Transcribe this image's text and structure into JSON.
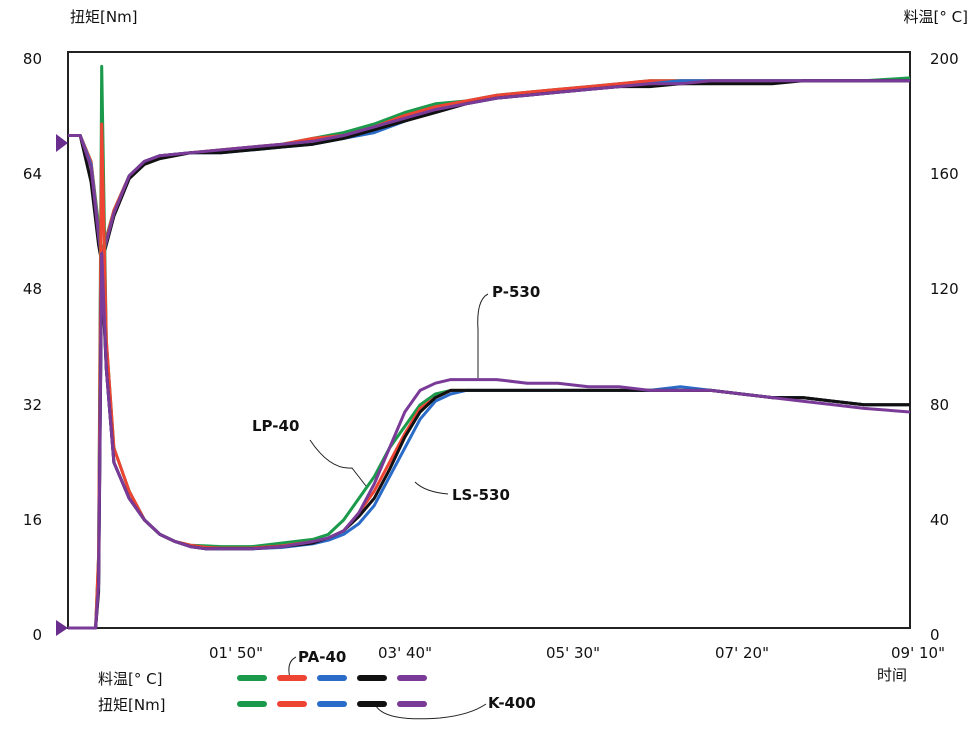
{
  "chart_data": {
    "type": "line",
    "left_axis_title": "扭矩[Nm]",
    "right_axis_title": "料温[° C]",
    "x_axis_title": "时间",
    "left_ylim": [
      0,
      80
    ],
    "right_ylim": [
      0,
      200
    ],
    "left_ticks": [
      "0",
      "16",
      "32",
      "48",
      "64",
      "80"
    ],
    "right_ticks": [
      "0",
      "40",
      "80",
      "120",
      "160",
      "200"
    ],
    "x_range_seconds": [
      0,
      550
    ],
    "x_ticks": [
      {
        "t": 110,
        "label": "01' 50\""
      },
      {
        "t": 220,
        "label": "03' 40\""
      },
      {
        "t": 330,
        "label": "05' 30\""
      },
      {
        "t": 440,
        "label": "07' 20\""
      },
      {
        "t": 550,
        "label": "09' 10\""
      }
    ],
    "grid": false,
    "series_colors": {
      "LP-40": "#1a9a4a",
      "PA-40": "#ee4433",
      "LS-530": "#2a6cc8",
      "K-400": "#111111",
      "P-530": "#7a3a98"
    },
    "annotations": [
      "P-530",
      "LP-40",
      "LS-530",
      "PA-40",
      "K-400"
    ],
    "legend": {
      "row_temp": "料温[° C]",
      "row_torque": "扭矩[Nm]",
      "order": [
        "LP-40",
        "PA-40",
        "LS-530",
        "K-400",
        "P-530"
      ]
    },
    "temperature_series": [
      {
        "name": "LP-40",
        "x": [
          0,
          8,
          15,
          20,
          22,
          30,
          40,
          50,
          60,
          80,
          100,
          120,
          140,
          160,
          180,
          200,
          220,
          240,
          260,
          280,
          300,
          320,
          340,
          360,
          380,
          400,
          420,
          440,
          460,
          480,
          500,
          520,
          550
        ],
        "y": [
          171,
          171,
          162,
          140,
          130,
          145,
          157,
          162,
          164,
          165,
          166,
          167,
          168,
          170,
          172,
          175,
          179,
          182,
          183,
          185,
          186,
          187,
          188,
          189,
          190,
          190,
          190,
          190,
          190,
          190,
          190,
          190,
          191
        ]
      },
      {
        "name": "PA-40",
        "x": [
          0,
          8,
          15,
          20,
          22,
          30,
          40,
          50,
          60,
          80,
          100,
          120,
          140,
          160,
          180,
          200,
          220,
          240,
          260,
          280,
          300,
          320,
          340,
          360,
          380,
          400,
          420,
          440,
          460,
          480,
          500,
          520,
          550
        ],
        "y": [
          171,
          171,
          162,
          138,
          129,
          145,
          157,
          162,
          164,
          165,
          166,
          167,
          168,
          170,
          171,
          174,
          178,
          181,
          183,
          185,
          186,
          187,
          188,
          189,
          190,
          190,
          190,
          190,
          190,
          190,
          190,
          190,
          190
        ]
      },
      {
        "name": "LS-530",
        "x": [
          0,
          8,
          15,
          20,
          22,
          30,
          40,
          50,
          60,
          80,
          100,
          120,
          140,
          160,
          180,
          200,
          220,
          240,
          260,
          280,
          300,
          320,
          340,
          360,
          380,
          400,
          420,
          440,
          460,
          480,
          500,
          520,
          550
        ],
        "y": [
          171,
          171,
          161,
          137,
          128,
          144,
          157,
          162,
          164,
          165,
          165,
          166,
          167,
          168,
          170,
          172,
          176,
          180,
          182,
          184,
          185,
          186,
          187,
          188,
          189,
          190,
          190,
          190,
          190,
          190,
          190,
          190,
          190
        ]
      },
      {
        "name": "K-400",
        "x": [
          0,
          8,
          15,
          20,
          22,
          30,
          40,
          50,
          60,
          80,
          100,
          120,
          140,
          160,
          180,
          200,
          220,
          240,
          260,
          280,
          300,
          320,
          340,
          360,
          380,
          400,
          420,
          440,
          460,
          480,
          500,
          520,
          550
        ],
        "y": [
          171,
          171,
          155,
          133,
          127,
          143,
          156,
          161,
          163,
          165,
          165,
          166,
          167,
          168,
          170,
          173,
          176,
          179,
          182,
          184,
          185,
          186,
          187,
          188,
          188,
          189,
          189,
          189,
          189,
          190,
          190,
          190,
          190
        ]
      },
      {
        "name": "P-530",
        "x": [
          0,
          8,
          15,
          20,
          22,
          30,
          40,
          50,
          60,
          80,
          100,
          120,
          140,
          160,
          180,
          200,
          220,
          240,
          260,
          280,
          300,
          320,
          340,
          360,
          380,
          400,
          420,
          440,
          460,
          480,
          500,
          520,
          550
        ],
        "y": [
          171,
          171,
          160,
          136,
          128,
          144,
          157,
          162,
          164,
          165,
          166,
          167,
          168,
          169,
          171,
          174,
          177,
          180,
          182,
          184,
          185,
          186,
          187,
          188,
          189,
          189,
          190,
          190,
          190,
          190,
          190,
          190,
          190
        ]
      }
    ],
    "torque_series": [
      {
        "name": "LP-40",
        "x": [
          0,
          15,
          18,
          20,
          22,
          25,
          30,
          40,
          50,
          60,
          70,
          80,
          90,
          100,
          110,
          120,
          140,
          160,
          170,
          180,
          190,
          200,
          210,
          220,
          230,
          240,
          250,
          260,
          280,
          300,
          320,
          340,
          360,
          380,
          400,
          420,
          440,
          460,
          480,
          500,
          520,
          550
        ],
        "y": [
          0,
          0,
          0,
          10,
          78,
          40,
          25,
          19,
          15,
          13,
          12,
          11.5,
          11.4,
          11.3,
          11.3,
          11.3,
          11.8,
          12.3,
          13,
          15,
          18,
          21,
          25,
          28,
          31,
          32.5,
          33,
          33,
          33,
          33,
          33,
          33,
          33,
          33,
          33,
          33,
          32.5,
          32,
          32,
          31.5,
          31,
          31
        ]
      },
      {
        "name": "PA-40",
        "x": [
          0,
          15,
          18,
          20,
          22,
          25,
          30,
          40,
          50,
          60,
          70,
          80,
          90,
          100,
          110,
          120,
          140,
          160,
          170,
          180,
          190,
          200,
          210,
          220,
          230,
          240,
          250,
          260,
          280,
          300,
          320,
          340,
          360,
          380,
          400,
          420,
          440,
          460,
          480,
          500,
          520,
          550
        ],
        "y": [
          0,
          0,
          0,
          10,
          70,
          40,
          25,
          19,
          15,
          13,
          12,
          11.5,
          11.2,
          11.1,
          11.1,
          11.1,
          11.4,
          12,
          12.4,
          13.5,
          16,
          19,
          23,
          27,
          30.5,
          32,
          33,
          33,
          33,
          33,
          33,
          33,
          33,
          33,
          33,
          33,
          32.5,
          32,
          32,
          31.5,
          31,
          31
        ]
      },
      {
        "name": "LS-530",
        "x": [
          0,
          15,
          18,
          20,
          22,
          25,
          30,
          40,
          50,
          60,
          70,
          80,
          90,
          100,
          110,
          120,
          140,
          160,
          170,
          180,
          190,
          200,
          210,
          220,
          230,
          240,
          250,
          260,
          280,
          300,
          320,
          340,
          360,
          380,
          400,
          420,
          440,
          460,
          480,
          500,
          520,
          550
        ],
        "y": [
          0,
          0,
          0,
          6,
          52,
          36,
          23,
          18,
          15,
          13,
          12,
          11.3,
          11,
          11,
          11,
          11,
          11.2,
          11.7,
          12.2,
          13,
          14.5,
          17,
          21,
          25,
          29,
          31.5,
          32.5,
          33,
          33,
          33,
          33,
          33,
          33,
          33,
          33.5,
          33,
          32.5,
          32,
          32,
          31.5,
          31,
          31
        ]
      },
      {
        "name": "K-400",
        "x": [
          0,
          15,
          18,
          20,
          22,
          25,
          30,
          40,
          50,
          60,
          70,
          80,
          90,
          100,
          110,
          120,
          140,
          160,
          170,
          180,
          190,
          200,
          210,
          220,
          230,
          240,
          250,
          260,
          280,
          300,
          320,
          340,
          360,
          380,
          400,
          420,
          440,
          460,
          480,
          500,
          520,
          550
        ],
        "y": [
          0,
          0,
          0,
          5,
          50,
          36,
          23,
          18,
          15,
          13,
          12,
          11.3,
          11,
          11,
          11,
          11,
          11.3,
          11.8,
          12.5,
          13.5,
          15.5,
          18,
          22,
          26.5,
          30,
          32,
          33,
          33,
          33,
          33,
          33,
          33,
          33,
          33,
          33,
          33,
          32.5,
          32,
          32,
          31.5,
          31,
          31
        ]
      },
      {
        "name": "P-530",
        "x": [
          0,
          15,
          18,
          20,
          22,
          25,
          30,
          40,
          50,
          60,
          70,
          80,
          90,
          100,
          110,
          120,
          140,
          160,
          170,
          180,
          190,
          200,
          210,
          220,
          230,
          240,
          250,
          260,
          280,
          300,
          320,
          340,
          360,
          380,
          400,
          420,
          440,
          460,
          480,
          500,
          520,
          550
        ],
        "y": [
          0,
          0,
          0,
          6,
          52,
          36,
          23,
          18,
          15,
          13,
          12,
          11.3,
          11,
          11,
          11,
          11,
          11.3,
          12,
          12.5,
          13.5,
          16,
          20,
          25,
          30,
          33,
          34,
          34.5,
          34.5,
          34.5,
          34,
          34,
          33.5,
          33.5,
          33,
          33,
          33,
          32.5,
          32,
          31.5,
          31,
          30.5,
          30
        ]
      }
    ]
  }
}
